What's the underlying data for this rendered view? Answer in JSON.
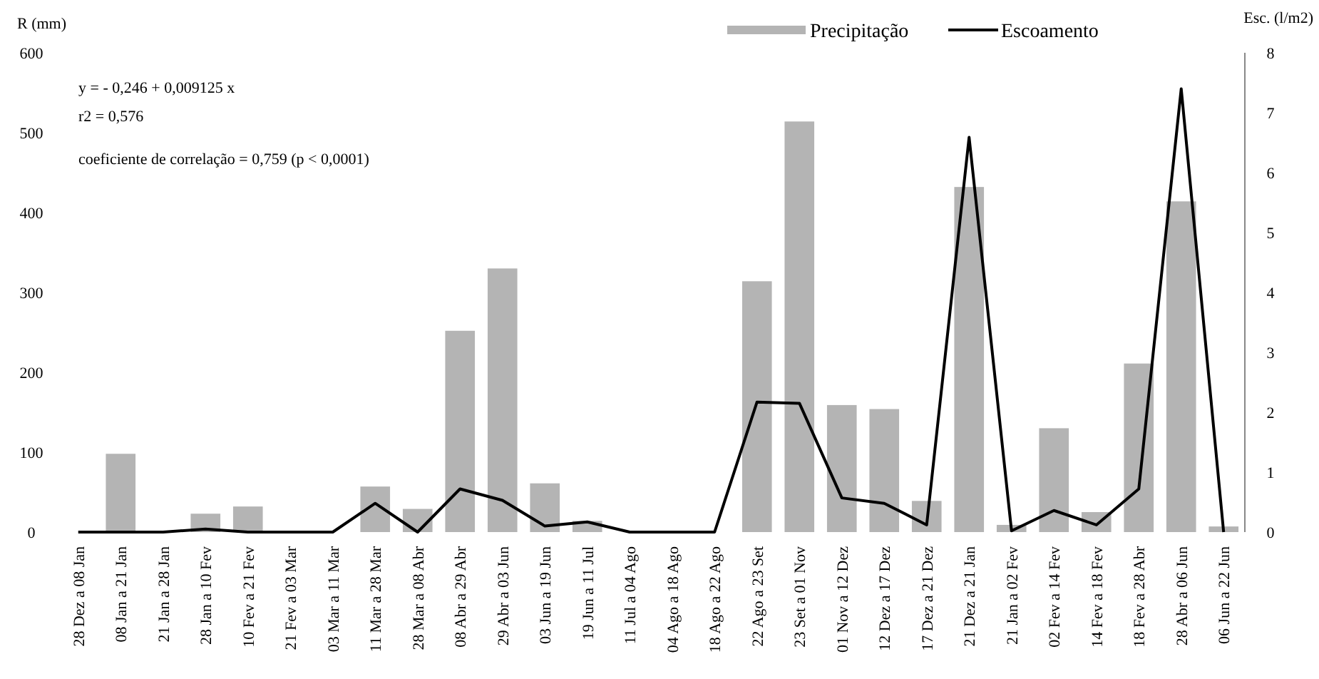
{
  "chart_data": {
    "type": "bar",
    "ylabel": "R (mm)",
    "y2label": "Esc. (l/m2)",
    "categories": [
      "28 Dez a 08 Jan",
      "08 Jan a 21 Jan",
      "21 Jan a 28 Jan",
      "28 Jan a 10 Fev",
      "10 Fev a 21 Fev",
      "21 Fev a 03 Mar",
      "03 Mar a 11 Mar",
      "11 Mar a 28 Mar",
      "28 Mar a 08 Abr",
      "08 Abr a 29 Abr",
      "29 Abr a 03 Jun",
      "03 Jun a 19 Jun",
      "19 Jun a 11 Jul",
      "11 Jul a 04 Ago",
      "04 Ago a 18 Ago",
      "18 Ago a 22 Ago",
      "22 Ago a 23 Set",
      "23 Set a 01 Nov",
      "01 Nov a 12 Dez",
      "12 Dez a 17 Dez",
      "17 Dez a 21 Dez",
      "21 Dez a 21 Jan",
      "21 Jan a 02 Fev",
      "02 Fev a 14 Fev",
      "14 Fev a 18 Fev",
      "18 Fev a 28 Abr",
      "28 Abr a 06 Jun",
      "06 Jun a 22 Jun"
    ],
    "series": [
      {
        "name": "Precipitação",
        "color": "#b4b4b4",
        "values": [
          0,
          98,
          0,
          23,
          32,
          0,
          0,
          57,
          29,
          252,
          330,
          61,
          14,
          0,
          0,
          0,
          314,
          514,
          159,
          154,
          39,
          432,
          9,
          130,
          25,
          211,
          414,
          7
        ]
      },
      {
        "name": "Escoamento",
        "type": "line",
        "axis": "y2",
        "color": "#000000",
        "values": [
          0,
          0,
          0,
          0.05,
          0,
          0,
          0,
          0.48,
          0,
          0.72,
          0.53,
          0.1,
          0.17,
          0,
          0,
          0,
          2.17,
          2.15,
          0.57,
          0.48,
          0.12,
          6.59,
          0.02,
          0.36,
          0.12,
          0.72,
          7.4,
          0
        ]
      }
    ],
    "ylim": [
      0,
      600
    ],
    "yticks": [
      0,
      100,
      200,
      300,
      400,
      500,
      600
    ],
    "y2lim": [
      0,
      8
    ],
    "y2ticks": [
      0,
      1,
      2,
      3,
      4,
      5,
      6,
      7,
      8
    ],
    "annotations": [
      "y = - 0,246 + 0,009125 x",
      "r2 = 0,576",
      "coeficiente de correlação = 0,759 (p < 0,0001)"
    ],
    "legend": "top",
    "grid": false,
    "marker": "none",
    "line_style": "solid"
  }
}
